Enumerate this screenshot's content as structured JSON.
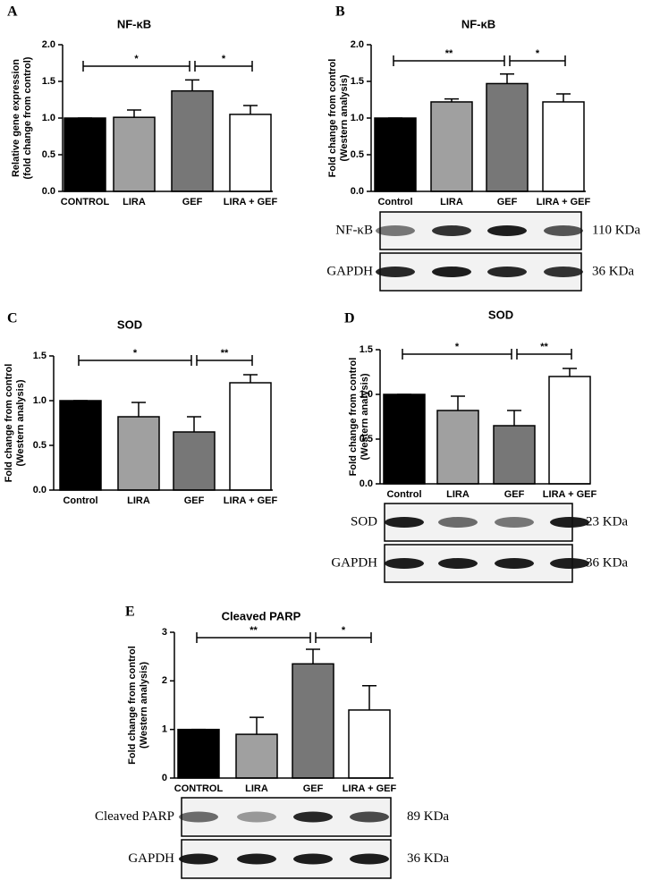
{
  "chart_data": [
    {
      "type": "bar",
      "panel": "A",
      "title": "NF-κB",
      "ylabel": [
        "Relative gene expression",
        "(fold change from control)"
      ],
      "categories": [
        "CONTROL",
        "LIRA",
        "GEF",
        "LIRA + GEF"
      ],
      "values": [
        1.0,
        1.01,
        1.37,
        1.05
      ],
      "errors": [
        0,
        0.1,
        0.15,
        0.12
      ],
      "colors": [
        "#000000",
        "#a0a0a0",
        "#777777",
        "#ffffff"
      ],
      "ylim": [
        0,
        2
      ],
      "yticks": [
        {
          "value": 0,
          "label": "0.0"
        },
        {
          "value": 0.5,
          "label": "0.5"
        },
        {
          "value": 1,
          "label": "1.0"
        },
        {
          "value": 1.5,
          "label": "1.5"
        },
        {
          "value": 2,
          "label": "2.0"
        }
      ],
      "significance": [
        {
          "from": 0,
          "to": 2,
          "label": "*"
        },
        {
          "from": 2,
          "to": 3,
          "label": "*"
        }
      ]
    },
    {
      "type": "bar",
      "panel": "B",
      "title": "NF-κB",
      "ylabel": [
        "Fold change from control",
        "(Western analysis)"
      ],
      "categories": [
        "Control",
        "LIRA",
        "GEF",
        "LIRA + GEF"
      ],
      "values": [
        1.0,
        1.22,
        1.47,
        1.22
      ],
      "errors": [
        0,
        0.04,
        0.13,
        0.11
      ],
      "colors": [
        "#000000",
        "#a0a0a0",
        "#777777",
        "#ffffff"
      ],
      "ylim": [
        0,
        2
      ],
      "yticks": [
        {
          "value": 0,
          "label": "0.0"
        },
        {
          "value": 0.5,
          "label": "0.5"
        },
        {
          "value": 1,
          "label": "1.0"
        },
        {
          "value": 1.5,
          "label": "1.5"
        },
        {
          "value": 2,
          "label": "2.0"
        }
      ],
      "significance": [
        {
          "from": 0,
          "to": 2,
          "label": "**"
        },
        {
          "from": 2,
          "to": 3,
          "label": "*"
        }
      ],
      "blot": {
        "bands": [
          "NF-κB",
          "GAPDH"
        ],
        "sizes": [
          "110 KDa",
          "36 KDa"
        ]
      }
    },
    {
      "type": "bar",
      "panel": "C",
      "title": "SOD",
      "ylabel": [
        "Fold change from control",
        "(Western analysis)"
      ],
      "categories": [
        "Control",
        "LIRA",
        "GEF",
        "LIRA + GEF"
      ],
      "values": [
        1.0,
        0.82,
        0.65,
        1.2
      ],
      "errors": [
        0,
        0.16,
        0.17,
        0.09
      ],
      "colors": [
        "#000000",
        "#a0a0a0",
        "#777777",
        "#ffffff"
      ],
      "ylim": [
        0,
        1.5
      ],
      "yticks": [
        {
          "value": 0,
          "label": "0.0"
        },
        {
          "value": 0.5,
          "label": "0.5"
        },
        {
          "value": 1,
          "label": "1.0"
        },
        {
          "value": 1.5,
          "label": "1.5"
        }
      ],
      "significance": [
        {
          "from": 0,
          "to": 2,
          "label": "*"
        },
        {
          "from": 2,
          "to": 3,
          "label": "**"
        }
      ]
    },
    {
      "type": "bar",
      "panel": "D",
      "title": "SOD",
      "ylabel": [
        "Fold change from control",
        "(Western analysis)"
      ],
      "categories": [
        "Control",
        "LIRA",
        "GEF",
        "LIRA + GEF"
      ],
      "values": [
        1.0,
        0.82,
        0.65,
        1.2
      ],
      "errors": [
        0,
        0.16,
        0.17,
        0.09
      ],
      "colors": [
        "#000000",
        "#a0a0a0",
        "#777777",
        "#ffffff"
      ],
      "ylim": [
        0,
        1.5
      ],
      "yticks": [
        {
          "value": 0,
          "label": "0.0"
        },
        {
          "value": 0.5,
          "label": "0.5"
        },
        {
          "value": 1,
          "label": "1.0"
        },
        {
          "value": 1.5,
          "label": "1.5"
        }
      ],
      "significance": [
        {
          "from": 0,
          "to": 2,
          "label": "*"
        },
        {
          "from": 2,
          "to": 3,
          "label": "**"
        }
      ],
      "blot": {
        "bands": [
          "SOD",
          "GAPDH"
        ],
        "sizes": [
          "23 KDa",
          "36 KDa"
        ]
      }
    },
    {
      "type": "bar",
      "panel": "E",
      "title": "Cleaved PARP",
      "ylabel": [
        "Fold change from control",
        "(Western analysis)"
      ],
      "categories": [
        "CONTROL",
        "LIRA",
        "GEF",
        "LIRA + GEF"
      ],
      "values": [
        1.0,
        0.9,
        2.35,
        1.4
      ],
      "errors": [
        0,
        0.35,
        0.3,
        0.5
      ],
      "colors": [
        "#000000",
        "#a0a0a0",
        "#777777",
        "#ffffff"
      ],
      "ylim": [
        0,
        3
      ],
      "yticks": [
        0,
        1,
        2,
        3
      ],
      "significance": [
        {
          "from": 0,
          "to": 2,
          "label": "**"
        },
        {
          "from": 2,
          "to": 3,
          "label": "*"
        }
      ],
      "blot": {
        "bands": [
          "Cleaved PARP",
          "GAPDH"
        ],
        "sizes": [
          "89 KDa",
          "36 KDa"
        ]
      }
    }
  ]
}
